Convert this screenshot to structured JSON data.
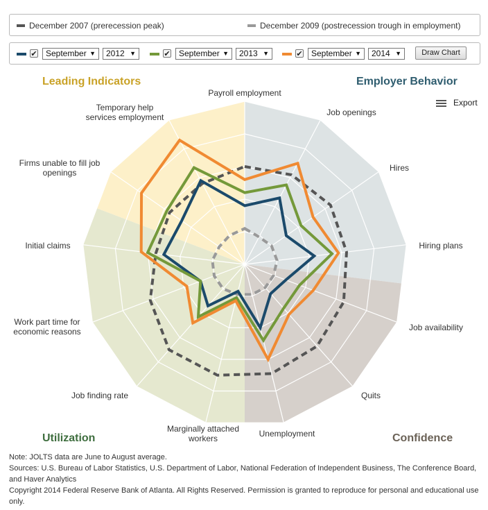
{
  "legend": {
    "items": [
      {
        "label": "December 2007 (prerecession peak)",
        "color": "#555555"
      },
      {
        "label": "December 2009 (postrecession trough in employment)",
        "color": "#999999"
      }
    ]
  },
  "controls": {
    "groups": [
      {
        "color": "#1b4a6b",
        "checked": "✔",
        "month": "September",
        "year": "2012"
      },
      {
        "color": "#74993a",
        "checked": "✔",
        "month": "September",
        "year": "2013"
      },
      {
        "color": "#f08a32",
        "checked": "✔",
        "month": "September",
        "year": "2014"
      }
    ],
    "draw_button": "Draw Chart"
  },
  "quadrants": {
    "leading": {
      "title": "Leading Indicators",
      "color": "#c9a227"
    },
    "employer": {
      "title": "Employer Behavior",
      "color": "#2f5d6f"
    },
    "utilization": {
      "title": "Utilization",
      "color": "#3f6e3f"
    },
    "confidence": {
      "title": "Confidence",
      "color": "#6b6257"
    }
  },
  "export": {
    "label": "Export",
    "icon": "menu-icon"
  },
  "notes": {
    "note": "Note: JOLTS data are June to August average.",
    "sources": "Sources: U.S. Bureau of Labor Statistics, U.S. Department of Labor, National Federation of Independent Business, The Conference Board, and Haver Analytics",
    "copyright": "Copyright 2014 Federal Reserve Bank of Atlanta. All Rights Reserved. Permission is granted to reproduce for personal and educational use only."
  },
  "chart_data": {
    "type": "radar",
    "categories": [
      "Payroll employment",
      "Job openings",
      "Hires",
      "Hiring plans",
      "Job availability",
      "Quits",
      "Unemployment",
      "Marginally attached workers",
      "Job finding rate",
      "Work part time for economic reasons",
      "Initial claims",
      "Firms unable to fill job openings",
      "Temporary help services employment"
    ],
    "ylim": [
      0,
      1
    ],
    "grid": true,
    "series": [
      {
        "name": "December 2007 (prerecession peak)",
        "color": "#555555",
        "dashed": true,
        "values": [
          0.6,
          0.62,
          0.64,
          0.63,
          0.65,
          0.67,
          0.69,
          0.7,
          0.7,
          0.62,
          0.55,
          0.56,
          0.56
        ]
      },
      {
        "name": "December 2009 (postrecession trough in employment)",
        "color": "#999999",
        "dashed": true,
        "values": [
          0.22,
          0.19,
          0.2,
          0.2,
          0.19,
          0.19,
          0.19,
          0.19,
          0.2,
          0.2,
          0.2,
          0.19,
          0.2
        ]
      },
      {
        "name": "September 2012",
        "color": "#1b4a6b",
        "values": [
          0.36,
          0.46,
          0.31,
          0.43,
          0.27,
          0.24,
          0.4,
          0.17,
          0.34,
          0.29,
          0.5,
          0.47,
          0.58
        ]
      },
      {
        "name": "September 2013",
        "color": "#74993a",
        "values": [
          0.44,
          0.55,
          0.42,
          0.54,
          0.36,
          0.36,
          0.48,
          0.21,
          0.43,
          0.29,
          0.6,
          0.58,
          0.67
        ]
      },
      {
        "name": "September 2014",
        "color": "#f08a32",
        "values": [
          0.52,
          0.7,
          0.51,
          0.58,
          0.45,
          0.41,
          0.6,
          0.23,
          0.48,
          0.38,
          0.64,
          0.77,
          0.86
        ]
      }
    ]
  }
}
